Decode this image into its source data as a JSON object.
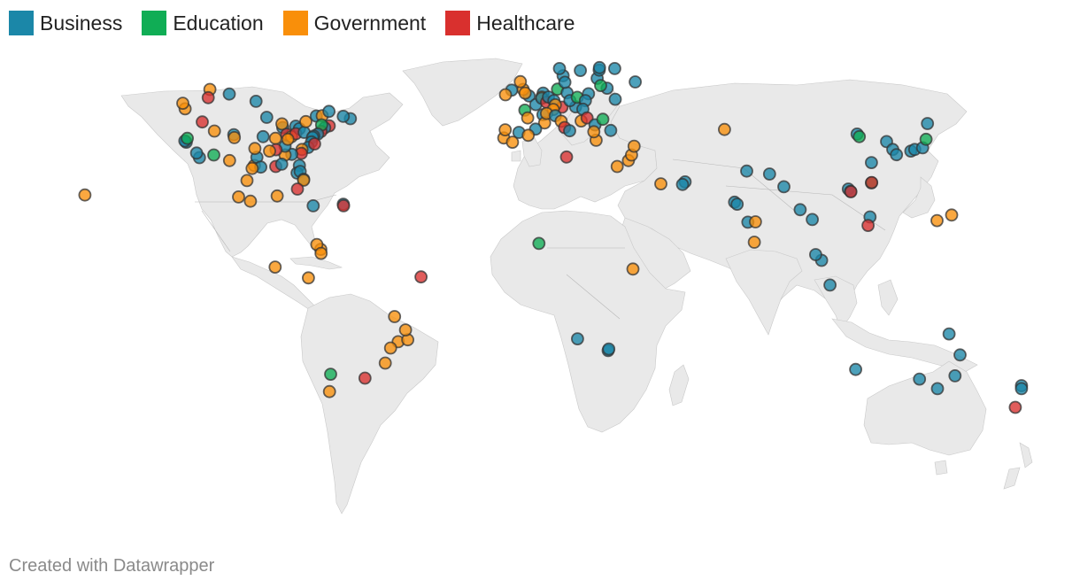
{
  "legend": [
    {
      "label": "Business",
      "color": "#1b87a8"
    },
    {
      "label": "Education",
      "color": "#10ad55"
    },
    {
      "label": "Government",
      "color": "#f98f0a"
    },
    {
      "label": "Healthcare",
      "color": "#d9302e"
    }
  ],
  "footer": "Created with Datawrapper",
  "markers": [
    {
      "lon": -122.3,
      "lat": 47.6,
      "cat": "Government"
    },
    {
      "lon": -123.1,
      "lat": 49.3,
      "cat": "Government"
    },
    {
      "lon": -117.2,
      "lat": 32.7,
      "cat": "Business"
    },
    {
      "lon": -118.2,
      "lat": 34.1,
      "cat": "Business"
    },
    {
      "lon": -121.9,
      "lat": 37.4,
      "cat": "Business"
    },
    {
      "lon": -122.4,
      "lat": 37.8,
      "cat": "Business"
    },
    {
      "lon": -121.5,
      "lat": 38.6,
      "cat": "Education"
    },
    {
      "lon": -112.1,
      "lat": 33.5,
      "cat": "Education"
    },
    {
      "lon": -111.9,
      "lat": 40.8,
      "cat": "Government"
    },
    {
      "lon": -105.0,
      "lat": 39.7,
      "cat": "Business"
    },
    {
      "lon": -104.8,
      "lat": 38.8,
      "cat": "Government"
    },
    {
      "lon": -113.5,
      "lat": 53.5,
      "cat": "Government"
    },
    {
      "lon": -114.1,
      "lat": 51.0,
      "cat": "Healthcare"
    },
    {
      "lon": -106.6,
      "lat": 52.1,
      "cat": "Business"
    },
    {
      "lon": -97.1,
      "lat": 49.9,
      "cat": "Business"
    },
    {
      "lon": -116.2,
      "lat": 43.6,
      "cat": "Healthcare"
    },
    {
      "lon": -106.5,
      "lat": 31.8,
      "cat": "Government"
    },
    {
      "lon": -97.7,
      "lat": 30.3,
      "cat": "Government"
    },
    {
      "lon": -96.8,
      "lat": 32.8,
      "cat": "Business"
    },
    {
      "lon": -95.4,
      "lat": 29.8,
      "cat": "Business"
    },
    {
      "lon": -98.5,
      "lat": 29.4,
      "cat": "Government"
    },
    {
      "lon": -97.5,
      "lat": 35.5,
      "cat": "Government"
    },
    {
      "lon": -94.6,
      "lat": 39.1,
      "cat": "Business"
    },
    {
      "lon": -90.2,
      "lat": 38.6,
      "cat": "Government"
    },
    {
      "lon": -93.3,
      "lat": 45.0,
      "cat": "Business"
    },
    {
      "lon": -87.6,
      "lat": 41.9,
      "cat": "Business"
    },
    {
      "lon": -87.9,
      "lat": 43.0,
      "cat": "Government"
    },
    {
      "lon": -86.2,
      "lat": 39.8,
      "cat": "Healthcare"
    },
    {
      "lon": -83.0,
      "lat": 42.3,
      "cat": "Business"
    },
    {
      "lon": -84.5,
      "lat": 39.1,
      "cat": "Government"
    },
    {
      "lon": -81.7,
      "lat": 41.5,
      "cat": "Business"
    },
    {
      "lon": -83.0,
      "lat": 40.0,
      "cat": "Healthcare"
    },
    {
      "lon": -80.0,
      "lat": 40.4,
      "cat": "Business"
    },
    {
      "lon": -79.4,
      "lat": 43.7,
      "cat": "Government"
    },
    {
      "lon": -75.7,
      "lat": 45.4,
      "cat": "Business"
    },
    {
      "lon": -73.6,
      "lat": 45.5,
      "cat": "Government"
    },
    {
      "lon": -71.2,
      "lat": 46.8,
      "cat": "Business"
    },
    {
      "lon": -63.6,
      "lat": 44.6,
      "cat": "Business"
    },
    {
      "lon": -66.1,
      "lat": 45.3,
      "cat": "Business"
    },
    {
      "lon": -71.1,
      "lat": 42.4,
      "cat": "Healthcare"
    },
    {
      "lon": -72.7,
      "lat": 41.8,
      "cat": "Business"
    },
    {
      "lon": -74.0,
      "lat": 40.7,
      "cat": "Healthcare"
    },
    {
      "lon": -73.8,
      "lat": 42.7,
      "cat": "Education"
    },
    {
      "lon": -75.2,
      "lat": 39.9,
      "cat": "Business"
    },
    {
      "lon": -76.6,
      "lat": 39.3,
      "cat": "Business"
    },
    {
      "lon": -77.0,
      "lat": 38.9,
      "cat": "Business"
    },
    {
      "lon": -77.4,
      "lat": 37.5,
      "cat": "Business"
    },
    {
      "lon": -78.6,
      "lat": 35.8,
      "cat": "Business"
    },
    {
      "lon": -80.8,
      "lat": 35.2,
      "cat": "Government"
    },
    {
      "lon": -81.0,
      "lat": 34.0,
      "cat": "Healthcare"
    },
    {
      "lon": -84.4,
      "lat": 33.7,
      "cat": "Business"
    },
    {
      "lon": -86.8,
      "lat": 33.5,
      "cat": "Government"
    },
    {
      "lon": -86.8,
      "lat": 36.2,
      "cat": "Business"
    },
    {
      "lon": -85.8,
      "lat": 38.3,
      "cat": "Government"
    },
    {
      "lon": -90.0,
      "lat": 35.1,
      "cat": "Healthcare"
    },
    {
      "lon": -92.3,
      "lat": 34.7,
      "cat": "Government"
    },
    {
      "lon": -90.1,
      "lat": 30.0,
      "cat": "Healthcare"
    },
    {
      "lon": -81.7,
      "lat": 30.3,
      "cat": "Business"
    },
    {
      "lon": -82.5,
      "lat": 28.0,
      "cat": "Business"
    },
    {
      "lon": -81.4,
      "lat": 28.5,
      "cat": "Business"
    },
    {
      "lon": -80.2,
      "lat": 26.1,
      "cat": "Business"
    },
    {
      "lon": -80.2,
      "lat": 25.8,
      "cat": "Government"
    },
    {
      "lon": -88.0,
      "lat": 30.7,
      "cat": "Business"
    },
    {
      "lon": -76.3,
      "lat": 36.9,
      "cat": "Healthcare"
    },
    {
      "lon": -99.1,
      "lat": 19.4,
      "cat": "Government"
    },
    {
      "lon": -103.3,
      "lat": 20.7,
      "cat": "Government"
    },
    {
      "lon": -100.3,
      "lat": 25.7,
      "cat": "Government"
    },
    {
      "lon": -89.6,
      "lat": 21.0,
      "cat": "Government"
    },
    {
      "lon": -82.4,
      "lat": 23.1,
      "cat": "Healthcare"
    },
    {
      "lon": -76.8,
      "lat": 18.0,
      "cat": "Business"
    },
    {
      "lon": -66.1,
      "lat": 18.5,
      "cat": "Business"
    },
    {
      "lon": -66.0,
      "lat": 18.0,
      "cat": "Healthcare"
    },
    {
      "lon": -74.1,
      "lat": 4.7,
      "cat": "Government"
    },
    {
      "lon": -75.5,
      "lat": 6.2,
      "cat": "Government"
    },
    {
      "lon": -74.0,
      "lat": 3.5,
      "cat": "Government"
    },
    {
      "lon": -90.3,
      "lat": -0.7,
      "cat": "Government"
    },
    {
      "lon": -78.5,
      "lat": -4.0,
      "cat": "Government"
    },
    {
      "lon": -38.5,
      "lat": -3.7,
      "cat": "Healthcare"
    },
    {
      "lon": -47.9,
      "lat": -15.8,
      "cat": "Government"
    },
    {
      "lon": -46.6,
      "lat": -23.5,
      "cat": "Government"
    },
    {
      "lon": -43.2,
      "lat": -22.9,
      "cat": "Government"
    },
    {
      "lon": -49.3,
      "lat": -25.4,
      "cat": "Government"
    },
    {
      "lon": -44.0,
      "lat": -19.9,
      "cat": "Government"
    },
    {
      "lon": -51.2,
      "lat": -30.0,
      "cat": "Government"
    },
    {
      "lon": -58.4,
      "lat": -34.6,
      "cat": "Healthcare"
    },
    {
      "lon": -70.6,
      "lat": -33.4,
      "cat": "Education"
    },
    {
      "lon": -71.0,
      "lat": -38.7,
      "cat": "Government"
    },
    {
      "lon": -157.9,
      "lat": 21.3,
      "cat": "Government"
    },
    {
      "lon": -0.1,
      "lat": 51.5,
      "cat": "Business"
    },
    {
      "lon": -2.2,
      "lat": 53.5,
      "cat": "Government"
    },
    {
      "lon": -1.5,
      "lat": 52.4,
      "cat": "Government"
    },
    {
      "lon": -3.2,
      "lat": 55.9,
      "cat": "Government"
    },
    {
      "lon": -6.3,
      "lat": 53.3,
      "cat": "Business"
    },
    {
      "lon": -8.5,
      "lat": 51.9,
      "cat": "Government"
    },
    {
      "lon": 2.3,
      "lat": 48.9,
      "cat": "Business"
    },
    {
      "lon": 4.8,
      "lat": 45.8,
      "cat": "Business"
    },
    {
      "lon": 5.4,
      "lat": 43.3,
      "cat": "Government"
    },
    {
      "lon": -1.6,
      "lat": 47.2,
      "cat": "Education"
    },
    {
      "lon": -0.6,
      "lat": 44.8,
      "cat": "Government"
    },
    {
      "lon": -3.7,
      "lat": 40.4,
      "cat": "Business"
    },
    {
      "lon": 2.2,
      "lat": 41.4,
      "cat": "Business"
    },
    {
      "lon": -9.1,
      "lat": 38.7,
      "cat": "Government"
    },
    {
      "lon": -8.6,
      "lat": 41.2,
      "cat": "Government"
    },
    {
      "lon": -6.0,
      "lat": 37.4,
      "cat": "Government"
    },
    {
      "lon": -0.4,
      "lat": 39.5,
      "cat": "Government"
    },
    {
      "lon": 4.9,
      "lat": 52.4,
      "cat": "Business"
    },
    {
      "lon": 4.4,
      "lat": 51.2,
      "cat": "Government"
    },
    {
      "lon": 4.4,
      "lat": 50.8,
      "cat": "Business"
    },
    {
      "lon": 6.1,
      "lat": 49.6,
      "cat": "Healthcare"
    },
    {
      "lon": 6.8,
      "lat": 51.2,
      "cat": "Business"
    },
    {
      "lon": 8.7,
      "lat": 50.1,
      "cat": "Business"
    },
    {
      "lon": 10.0,
      "lat": 53.6,
      "cat": "Education"
    },
    {
      "lon": 13.4,
      "lat": 52.5,
      "cat": "Business"
    },
    {
      "lon": 11.6,
      "lat": 48.1,
      "cat": "Healthcare"
    },
    {
      "lon": 9.2,
      "lat": 48.8,
      "cat": "Government"
    },
    {
      "lon": 8.5,
      "lat": 47.4,
      "cat": "Government"
    },
    {
      "lon": 6.1,
      "lat": 46.2,
      "cat": "Government"
    },
    {
      "lon": 9.2,
      "lat": 45.5,
      "cat": "Business"
    },
    {
      "lon": 11.3,
      "lat": 43.8,
      "cat": "Government"
    },
    {
      "lon": 12.5,
      "lat": 41.9,
      "cat": "Healthcare"
    },
    {
      "lon": 14.3,
      "lat": 40.9,
      "cat": "Business"
    },
    {
      "lon": 16.4,
      "lat": 48.2,
      "cat": "Business"
    },
    {
      "lon": 14.4,
      "lat": 50.1,
      "cat": "Business"
    },
    {
      "lon": 17.0,
      "lat": 51.1,
      "cat": "Education"
    },
    {
      "lon": 21.0,
      "lat": 52.2,
      "cat": "Business"
    },
    {
      "lon": 19.9,
      "lat": 50.1,
      "cat": "Business"
    },
    {
      "lon": 19.0,
      "lat": 47.5,
      "cat": "Business"
    },
    {
      "lon": 18.4,
      "lat": 43.9,
      "cat": "Government"
    },
    {
      "lon": 20.5,
      "lat": 44.8,
      "cat": "Healthcare"
    },
    {
      "lon": 23.3,
      "lat": 42.7,
      "cat": "Business"
    },
    {
      "lon": 26.1,
      "lat": 44.4,
      "cat": "Education"
    },
    {
      "lon": 23.7,
      "lat": 38.0,
      "cat": "Government"
    },
    {
      "lon": 22.9,
      "lat": 40.6,
      "cat": "Government"
    },
    {
      "lon": 28.9,
      "lat": 41.0,
      "cat": "Business"
    },
    {
      "lon": 30.5,
      "lat": 50.5,
      "cat": "Business"
    },
    {
      "lon": 27.6,
      "lat": 53.9,
      "cat": "Business"
    },
    {
      "lon": 24.1,
      "lat": 56.9,
      "cat": "Business"
    },
    {
      "lon": 25.3,
      "lat": 54.7,
      "cat": "Education"
    },
    {
      "lon": 24.8,
      "lat": 59.4,
      "cat": "Business"
    },
    {
      "lon": 24.9,
      "lat": 60.2,
      "cat": "Business"
    },
    {
      "lon": 18.1,
      "lat": 59.3,
      "cat": "Business"
    },
    {
      "lon": 11.97,
      "lat": 57.7,
      "cat": "Business"
    },
    {
      "lon": 10.7,
      "lat": 59.9,
      "cat": "Business"
    },
    {
      "lon": 12.6,
      "lat": 55.7,
      "cat": "Business"
    },
    {
      "lon": 37.6,
      "lat": 55.8,
      "cat": "Business"
    },
    {
      "lon": 30.3,
      "lat": 59.9,
      "cat": "Business"
    },
    {
      "lon": 13.2,
      "lat": 32.9,
      "cat": "Healthcare"
    },
    {
      "lon": 35.2,
      "lat": 31.8,
      "cat": "Government"
    },
    {
      "lon": 36.3,
      "lat": 33.5,
      "cat": "Government"
    },
    {
      "lon": 37.2,
      "lat": 36.2,
      "cat": "Government"
    },
    {
      "lon": 31.2,
      "lat": 30.0,
      "cat": "Government"
    },
    {
      "lon": 46.7,
      "lat": 24.7,
      "cat": "Government"
    },
    {
      "lon": 55.3,
      "lat": 25.3,
      "cat": "Business"
    },
    {
      "lon": 54.4,
      "lat": 24.5,
      "cat": "Business"
    },
    {
      "lon": 3.4,
      "lat": 6.5,
      "cat": "Education"
    },
    {
      "lon": 36.8,
      "lat": -1.3,
      "cat": "Government"
    },
    {
      "lon": 17.1,
      "lat": -22.6,
      "cat": "Business"
    },
    {
      "lon": 28.0,
      "lat": -26.2,
      "cat": "Business"
    },
    {
      "lon": 28.2,
      "lat": -25.7,
      "cat": "Business"
    },
    {
      "lon": 69.3,
      "lat": 41.3,
      "cat": "Government"
    },
    {
      "lon": 72.9,
      "lat": 19.1,
      "cat": "Business"
    },
    {
      "lon": 73.8,
      "lat": 18.5,
      "cat": "Business"
    },
    {
      "lon": 77.2,
      "lat": 28.6,
      "cat": "Business"
    },
    {
      "lon": 77.6,
      "lat": 13.0,
      "cat": "Business"
    },
    {
      "lon": 80.3,
      "lat": 13.1,
      "cat": "Government"
    },
    {
      "lon": 79.9,
      "lat": 6.9,
      "cat": "Government"
    },
    {
      "lon": 85.3,
      "lat": 27.7,
      "cat": "Business"
    },
    {
      "lon": 90.4,
      "lat": 23.8,
      "cat": "Business"
    },
    {
      "lon": 96.2,
      "lat": 16.8,
      "cat": "Business"
    },
    {
      "lon": 100.5,
      "lat": 13.8,
      "cat": "Business"
    },
    {
      "lon": 103.8,
      "lat": 1.35,
      "cat": "Business"
    },
    {
      "lon": 101.7,
      "lat": 3.1,
      "cat": "Business"
    },
    {
      "lon": 106.8,
      "lat": -6.2,
      "cat": "Business"
    },
    {
      "lon": 121.0,
      "lat": 14.6,
      "cat": "Business"
    },
    {
      "lon": 120.3,
      "lat": 12.0,
      "cat": "Healthcare"
    },
    {
      "lon": 116.4,
      "lat": 39.9,
      "cat": "Business"
    },
    {
      "lon": 117.2,
      "lat": 39.1,
      "cat": "Education"
    },
    {
      "lon": 121.5,
      "lat": 31.2,
      "cat": "Business"
    },
    {
      "lon": 113.3,
      "lat": 23.1,
      "cat": "Business"
    },
    {
      "lon": 114.1,
      "lat": 22.4,
      "cat": "Business"
    },
    {
      "lon": 114.2,
      "lat": 22.3,
      "cat": "Healthcare"
    },
    {
      "lon": 121.5,
      "lat": 25.0,
      "cat": "Education"
    },
    {
      "lon": 121.6,
      "lat": 25.1,
      "cat": "Healthcare"
    },
    {
      "lon": 126.9,
      "lat": 37.6,
      "cat": "Business"
    },
    {
      "lon": 129.1,
      "lat": 35.2,
      "cat": "Business"
    },
    {
      "lon": 130.4,
      "lat": 33.6,
      "cat": "Business"
    },
    {
      "lon": 135.5,
      "lat": 34.7,
      "cat": "Business"
    },
    {
      "lon": 136.9,
      "lat": 35.2,
      "cat": "Business"
    },
    {
      "lon": 139.7,
      "lat": 35.7,
      "cat": "Business"
    },
    {
      "lon": 140.9,
      "lat": 38.3,
      "cat": "Education"
    },
    {
      "lon": 141.4,
      "lat": 43.1,
      "cat": "Business"
    },
    {
      "lon": 144.8,
      "lat": 13.5,
      "cat": "Government"
    },
    {
      "lon": 150.0,
      "lat": 15.2,
      "cat": "Government"
    },
    {
      "lon": 115.9,
      "lat": -31.95,
      "cat": "Business"
    },
    {
      "lon": 138.6,
      "lat": -34.9,
      "cat": "Business"
    },
    {
      "lon": 144.96,
      "lat": -37.8,
      "cat": "Business"
    },
    {
      "lon": 151.2,
      "lat": -33.9,
      "cat": "Business"
    },
    {
      "lon": 153.0,
      "lat": -27.5,
      "cat": "Business"
    },
    {
      "lon": 149.1,
      "lat": -21.1,
      "cat": "Business"
    },
    {
      "lon": 174.8,
      "lat": -36.9,
      "cat": "Business"
    },
    {
      "lon": 174.8,
      "lat": -37.8,
      "cat": "Business"
    },
    {
      "lon": 172.6,
      "lat": -43.5,
      "cat": "Healthcare"
    }
  ]
}
